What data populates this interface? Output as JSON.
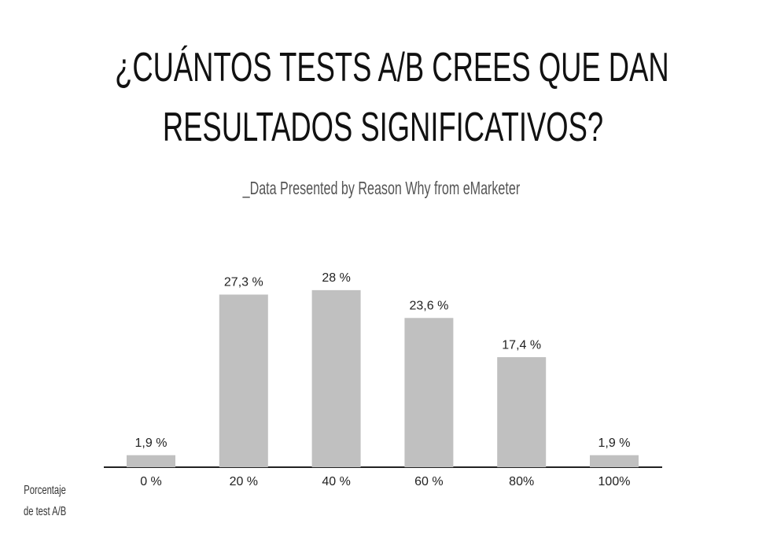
{
  "chart_data": {
    "type": "bar",
    "title": "¿CUÁNTOS TESTS A/B CREES QUE DAN\nRESULTADOS SIGNIFICATIVOS?",
    "subtitle": "_Data Presented by Reason Why from eMarketer",
    "x_label": "Porcentaje\nde test A/B",
    "categories": [
      "0 %",
      "20 %",
      "40 %",
      "60 %",
      "80%",
      "100%"
    ],
    "values": [
      1.9,
      27.3,
      28,
      23.6,
      17.4,
      1.9
    ],
    "value_labels": [
      "1,9 %",
      "27,3 %",
      "28 %",
      "23,6 %",
      "17,4 %",
      "1,9 %"
    ],
    "color": "#c0c0c0"
  }
}
